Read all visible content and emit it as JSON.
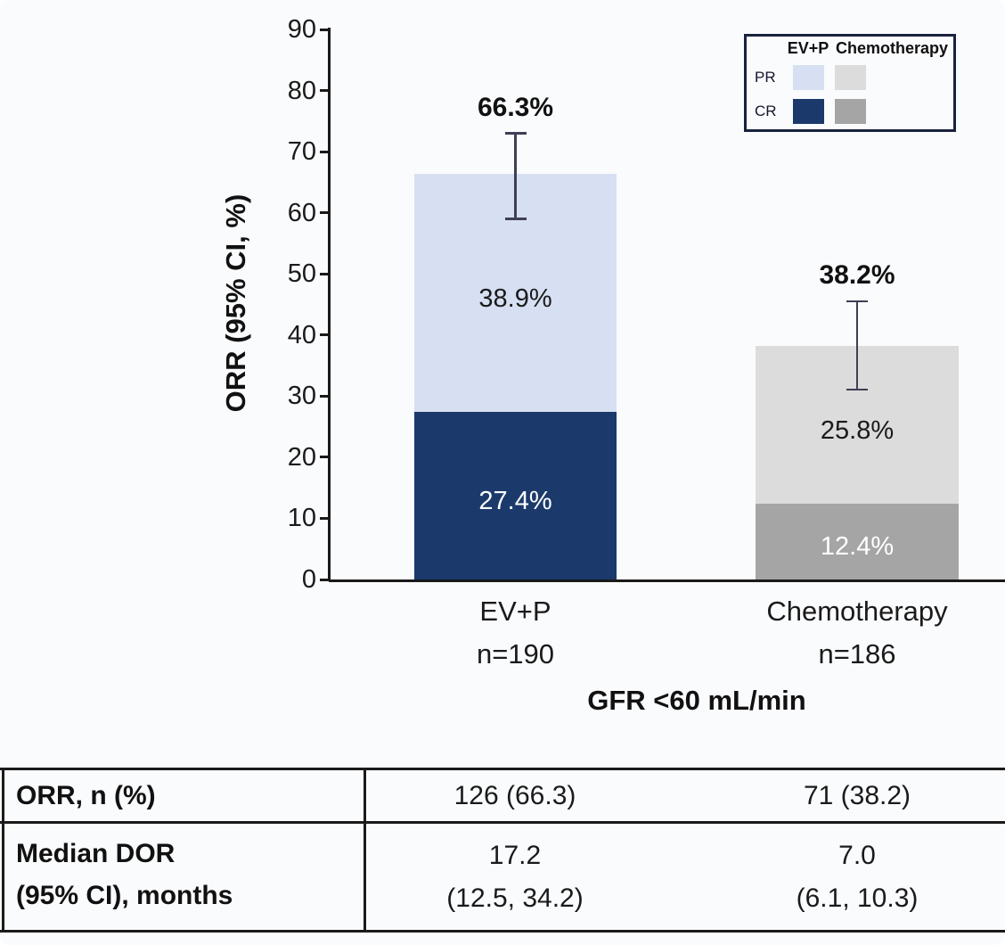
{
  "colors": {
    "background": "#fafbfd",
    "axis": "#1a1a1a",
    "error_bar": "#3f3f55",
    "evp_pr": "#d7e0f2",
    "evp_cr": "#1b3a6b",
    "chemo_pr": "#dcdcdc",
    "chemo_cr": "#a5a5a5"
  },
  "chart_data": {
    "type": "bar",
    "stacked": true,
    "title": "",
    "ylabel": "ORR (95% CI, %)",
    "xlabel": "GFR <60 mL/min",
    "ylim": [
      0,
      90
    ],
    "yticks": [
      0,
      10,
      20,
      30,
      40,
      50,
      60,
      70,
      80,
      90
    ],
    "grid": false,
    "categories": [
      "EV+P",
      "Chemotherapy"
    ],
    "category_sublabels": [
      "n=190",
      "n=186"
    ],
    "series": [
      {
        "name": "CR",
        "values": [
          27.4,
          12.4
        ],
        "labels": [
          "27.4%",
          "12.4%"
        ],
        "colors": [
          "#1b3a6b",
          "#a5a5a5"
        ],
        "label_colors": [
          "#ffffff",
          "#ffffff"
        ]
      },
      {
        "name": "PR",
        "values": [
          38.9,
          25.8
        ],
        "labels": [
          "38.9%",
          "25.8%"
        ],
        "colors": [
          "#d7e0f2",
          "#dcdcdc"
        ],
        "label_colors": [
          "#1a1a1a",
          "#1a1a1a"
        ]
      }
    ],
    "totals": [
      66.3,
      38.2
    ],
    "total_labels": [
      "66.3%",
      "38.2%"
    ],
    "error_bars": [
      {
        "low": 59.0,
        "high": 73.0
      },
      {
        "low": 31.1,
        "high": 45.5
      }
    ],
    "legend": {
      "position": "top-right",
      "columns": [
        "EV+P",
        "Chemotherapy"
      ],
      "rows": [
        {
          "label": "PR",
          "swatch_colors": [
            "#d7e0f2",
            "#dcdcdc"
          ]
        },
        {
          "label": "CR",
          "swatch_colors": [
            "#1b3a6b",
            "#a5a5a5"
          ]
        }
      ]
    }
  },
  "table": {
    "rows": [
      {
        "label_lines": [
          "ORR, n (%)"
        ],
        "col1_lines": [
          "126 (66.3)"
        ],
        "col2_lines": [
          "71 (38.2)"
        ]
      },
      {
        "label_lines": [
          "Median DOR",
          "(95% CI), months"
        ],
        "col1_lines": [
          "17.2",
          "(12.5, 34.2)"
        ],
        "col2_lines": [
          "7.0",
          "(6.1, 10.3)"
        ]
      }
    ]
  }
}
